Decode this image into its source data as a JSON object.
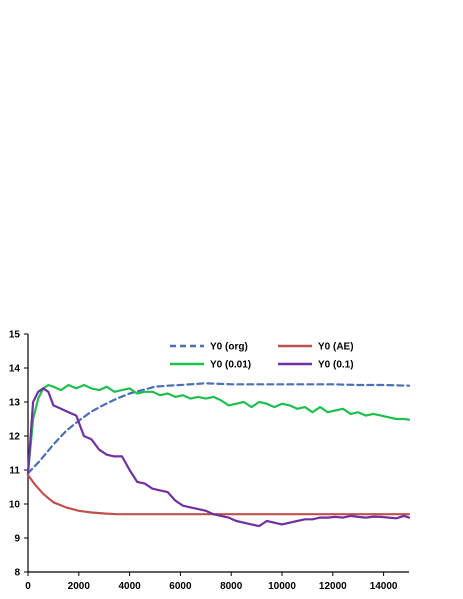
{
  "chart_data": {
    "type": "line",
    "title": "",
    "xlabel": "",
    "ylabel": "",
    "xlim": [
      0,
      15000
    ],
    "ylim": [
      8,
      15
    ],
    "x_ticks": [
      0,
      2000,
      4000,
      6000,
      8000,
      10000,
      12000,
      14000
    ],
    "y_ticks": [
      8,
      9,
      10,
      11,
      12,
      13,
      14,
      15
    ],
    "grid": false,
    "legend_position": "top-right",
    "series": [
      {
        "name": "Y0 (org)",
        "color": "#4a6fb5",
        "dash": "dashed",
        "x": [
          0,
          500,
          1000,
          1500,
          2000,
          2500,
          3000,
          3500,
          4000,
          4500,
          5000,
          5500,
          6000,
          7000,
          8000,
          9000,
          10000,
          11000,
          12000,
          13000,
          14000,
          15000
        ],
        "y": [
          10.9,
          11.3,
          11.75,
          12.15,
          12.45,
          12.72,
          12.92,
          13.1,
          13.25,
          13.35,
          13.45,
          13.48,
          13.5,
          13.55,
          13.52,
          13.52,
          13.52,
          13.52,
          13.52,
          13.5,
          13.5,
          13.48
        ]
      },
      {
        "name": "Y0 (AE)",
        "color": "#c0504d",
        "dash": "solid",
        "x": [
          0,
          300,
          600,
          1000,
          1500,
          2000,
          2500,
          3000,
          3500,
          4000,
          5000,
          6000,
          7000,
          8000,
          9000,
          10000,
          11000,
          12000,
          13000,
          14000,
          15000
        ],
        "y": [
          10.85,
          10.55,
          10.3,
          10.05,
          9.9,
          9.8,
          9.75,
          9.72,
          9.7,
          9.7,
          9.7,
          9.7,
          9.7,
          9.7,
          9.7,
          9.7,
          9.7,
          9.7,
          9.7,
          9.7,
          9.7
        ]
      },
      {
        "name": "Y0 (0.01)",
        "color": "#1fbf4f",
        "dash": "solid",
        "x": [
          0,
          200,
          400,
          600,
          800,
          1000,
          1300,
          1600,
          1900,
          2200,
          2500,
          2800,
          3100,
          3400,
          3700,
          4000,
          4300,
          4600,
          4900,
          5200,
          5500,
          5800,
          6100,
          6400,
          6700,
          7000,
          7300,
          7600,
          7900,
          8200,
          8500,
          8800,
          9100,
          9400,
          9700,
          10000,
          10300,
          10600,
          10900,
          11200,
          11500,
          11800,
          12100,
          12400,
          12700,
          13000,
          13300,
          13600,
          13900,
          14200,
          14500,
          14800,
          15000
        ],
        "y": [
          10.9,
          12.5,
          13.1,
          13.4,
          13.5,
          13.45,
          13.35,
          13.5,
          13.4,
          13.5,
          13.4,
          13.35,
          13.45,
          13.3,
          13.35,
          13.4,
          13.25,
          13.3,
          13.3,
          13.2,
          13.25,
          13.15,
          13.2,
          13.1,
          13.15,
          13.1,
          13.15,
          13.05,
          12.9,
          12.95,
          13.0,
          12.85,
          13.0,
          12.95,
          12.85,
          12.95,
          12.9,
          12.8,
          12.85,
          12.7,
          12.85,
          12.7,
          12.75,
          12.8,
          12.65,
          12.7,
          12.6,
          12.65,
          12.6,
          12.55,
          12.5,
          12.5,
          12.48
        ]
      },
      {
        "name": "Y0 (0.1)",
        "color": "#7030a0",
        "dash": "solid",
        "x": [
          0,
          200,
          400,
          600,
          800,
          1000,
          1300,
          1600,
          1900,
          2200,
          2500,
          2800,
          3100,
          3400,
          3700,
          4000,
          4300,
          4600,
          4900,
          5200,
          5500,
          5800,
          6100,
          6400,
          6700,
          7000,
          7300,
          7600,
          7900,
          8200,
          8500,
          8800,
          9100,
          9400,
          9700,
          10000,
          10300,
          10600,
          10900,
          11200,
          11500,
          11800,
          12100,
          12400,
          12700,
          13000,
          13300,
          13600,
          13900,
          14200,
          14500,
          14800,
          15000
        ],
        "y": [
          10.9,
          13.0,
          13.3,
          13.4,
          13.3,
          12.9,
          12.8,
          12.7,
          12.6,
          12.0,
          11.9,
          11.6,
          11.45,
          11.4,
          11.4,
          11.0,
          10.65,
          10.6,
          10.45,
          10.4,
          10.35,
          10.1,
          9.95,
          9.9,
          9.85,
          9.8,
          9.7,
          9.65,
          9.6,
          9.5,
          9.45,
          9.4,
          9.35,
          9.5,
          9.45,
          9.4,
          9.45,
          9.5,
          9.55,
          9.55,
          9.6,
          9.6,
          9.62,
          9.6,
          9.65,
          9.62,
          9.6,
          9.63,
          9.62,
          9.6,
          9.58,
          9.65,
          9.6
        ]
      }
    ]
  }
}
